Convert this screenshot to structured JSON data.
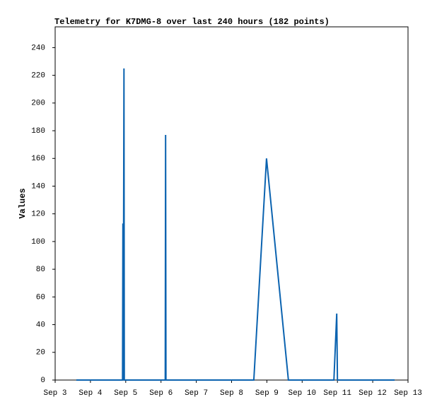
{
  "chart_data": {
    "type": "line",
    "title": "Telemetry for K7DMG-8 over last 240 hours (182 points)",
    "y_label": "Values",
    "x": [
      3.6,
      4.91,
      4.92,
      4.93,
      4.95,
      4.96,
      6.12,
      6.13,
      6.14,
      8.63,
      8.99,
      9.61,
      10.9,
      10.98,
      11.0,
      12.62
    ],
    "values": [
      0,
      0,
      113,
      0,
      225,
      0,
      0,
      177,
      0,
      0,
      160,
      0,
      0,
      48,
      0,
      0
    ],
    "color": "#0b63b0",
    "xlim": [
      3,
      13
    ],
    "xticks": [
      {
        "value": 3,
        "label": "Sep 3"
      },
      {
        "value": 4,
        "label": "Sep 4"
      },
      {
        "value": 5,
        "label": "Sep 5"
      },
      {
        "value": 6,
        "label": "Sep 6"
      },
      {
        "value": 7,
        "label": "Sep 7"
      },
      {
        "value": 8,
        "label": "Sep 8"
      },
      {
        "value": 9,
        "label": "Sep 9"
      },
      {
        "value": 10,
        "label": "Sep 10"
      },
      {
        "value": 11,
        "label": "Sep 11"
      },
      {
        "value": 12,
        "label": "Sep 12"
      },
      {
        "value": 13,
        "label": "Sep 13"
      }
    ],
    "ylim": [
      0,
      255
    ],
    "yticks": [
      0,
      20,
      40,
      60,
      80,
      100,
      120,
      140,
      160,
      180,
      200,
      220,
      240
    ]
  }
}
